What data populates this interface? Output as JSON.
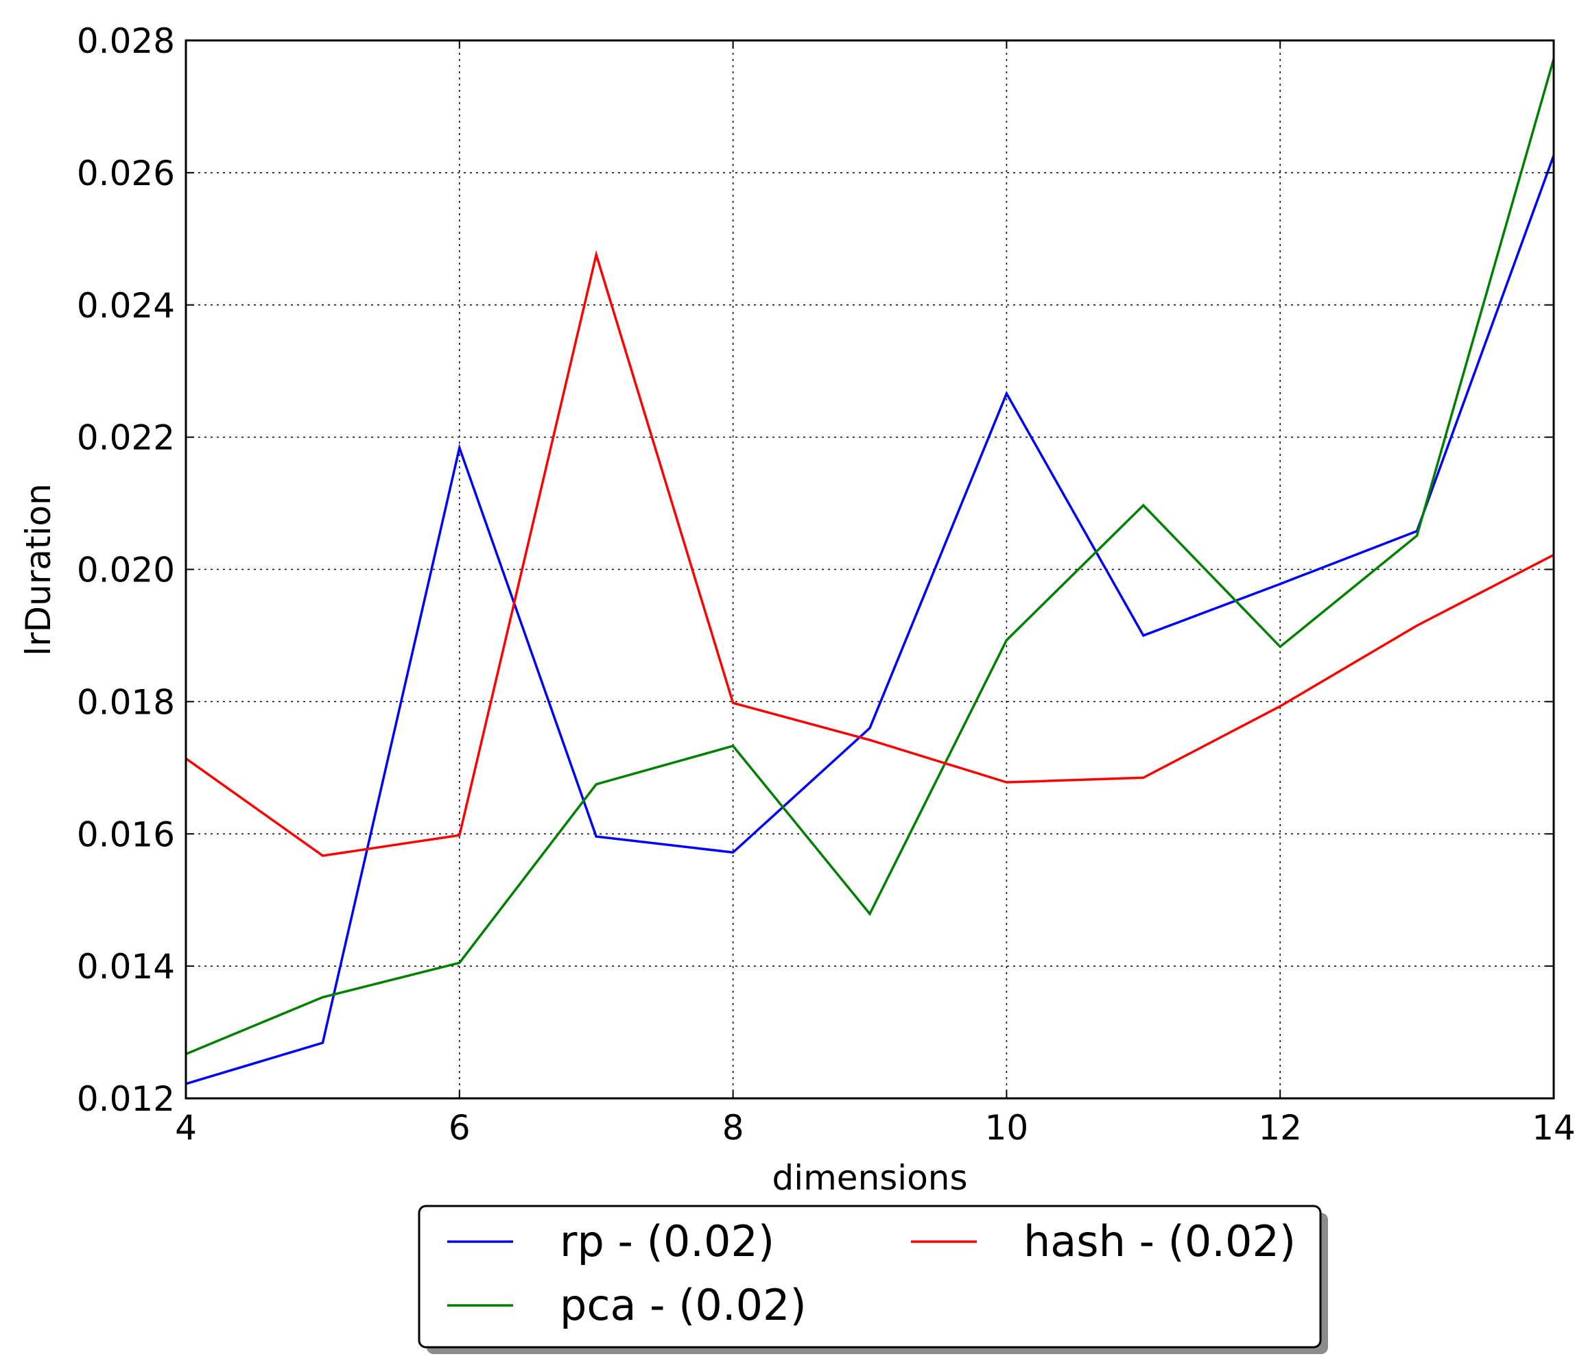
{
  "chart_data": {
    "type": "line",
    "title": "",
    "xlabel": "dimensions",
    "ylabel": "lrDuration",
    "xlim": [
      4,
      14
    ],
    "ylim": [
      0.012,
      0.028
    ],
    "xticks": [
      "4",
      "6",
      "8",
      "10",
      "12",
      "14"
    ],
    "yticks": [
      "0.012",
      "0.014",
      "0.016",
      "0.018",
      "0.020",
      "0.022",
      "0.024",
      "0.026",
      "0.028"
    ],
    "grid": true,
    "legend_position": "below",
    "x": [
      4,
      5,
      6,
      7,
      8,
      9,
      10,
      11,
      12,
      13,
      14
    ],
    "series": [
      {
        "name": "rp - (0.02)",
        "color": "#0000ff",
        "values": [
          0.01222,
          0.01284,
          0.02184,
          0.01596,
          0.01572,
          0.0176,
          0.02266,
          0.019,
          0.01978,
          0.02058,
          0.02626
        ]
      },
      {
        "name": "pca - (0.02)",
        "color": "#008000",
        "values": [
          0.01267,
          0.01353,
          0.01405,
          0.01675,
          0.01733,
          0.01479,
          0.01893,
          0.02097,
          0.01883,
          0.02051,
          0.02772
        ]
      },
      {
        "name": "hash - (0.02)",
        "color": "#ff0000",
        "values": [
          0.01714,
          0.01567,
          0.01598,
          0.02476,
          0.01798,
          0.01742,
          0.01678,
          0.01685,
          0.01793,
          0.01915,
          0.02022
        ]
      }
    ]
  }
}
